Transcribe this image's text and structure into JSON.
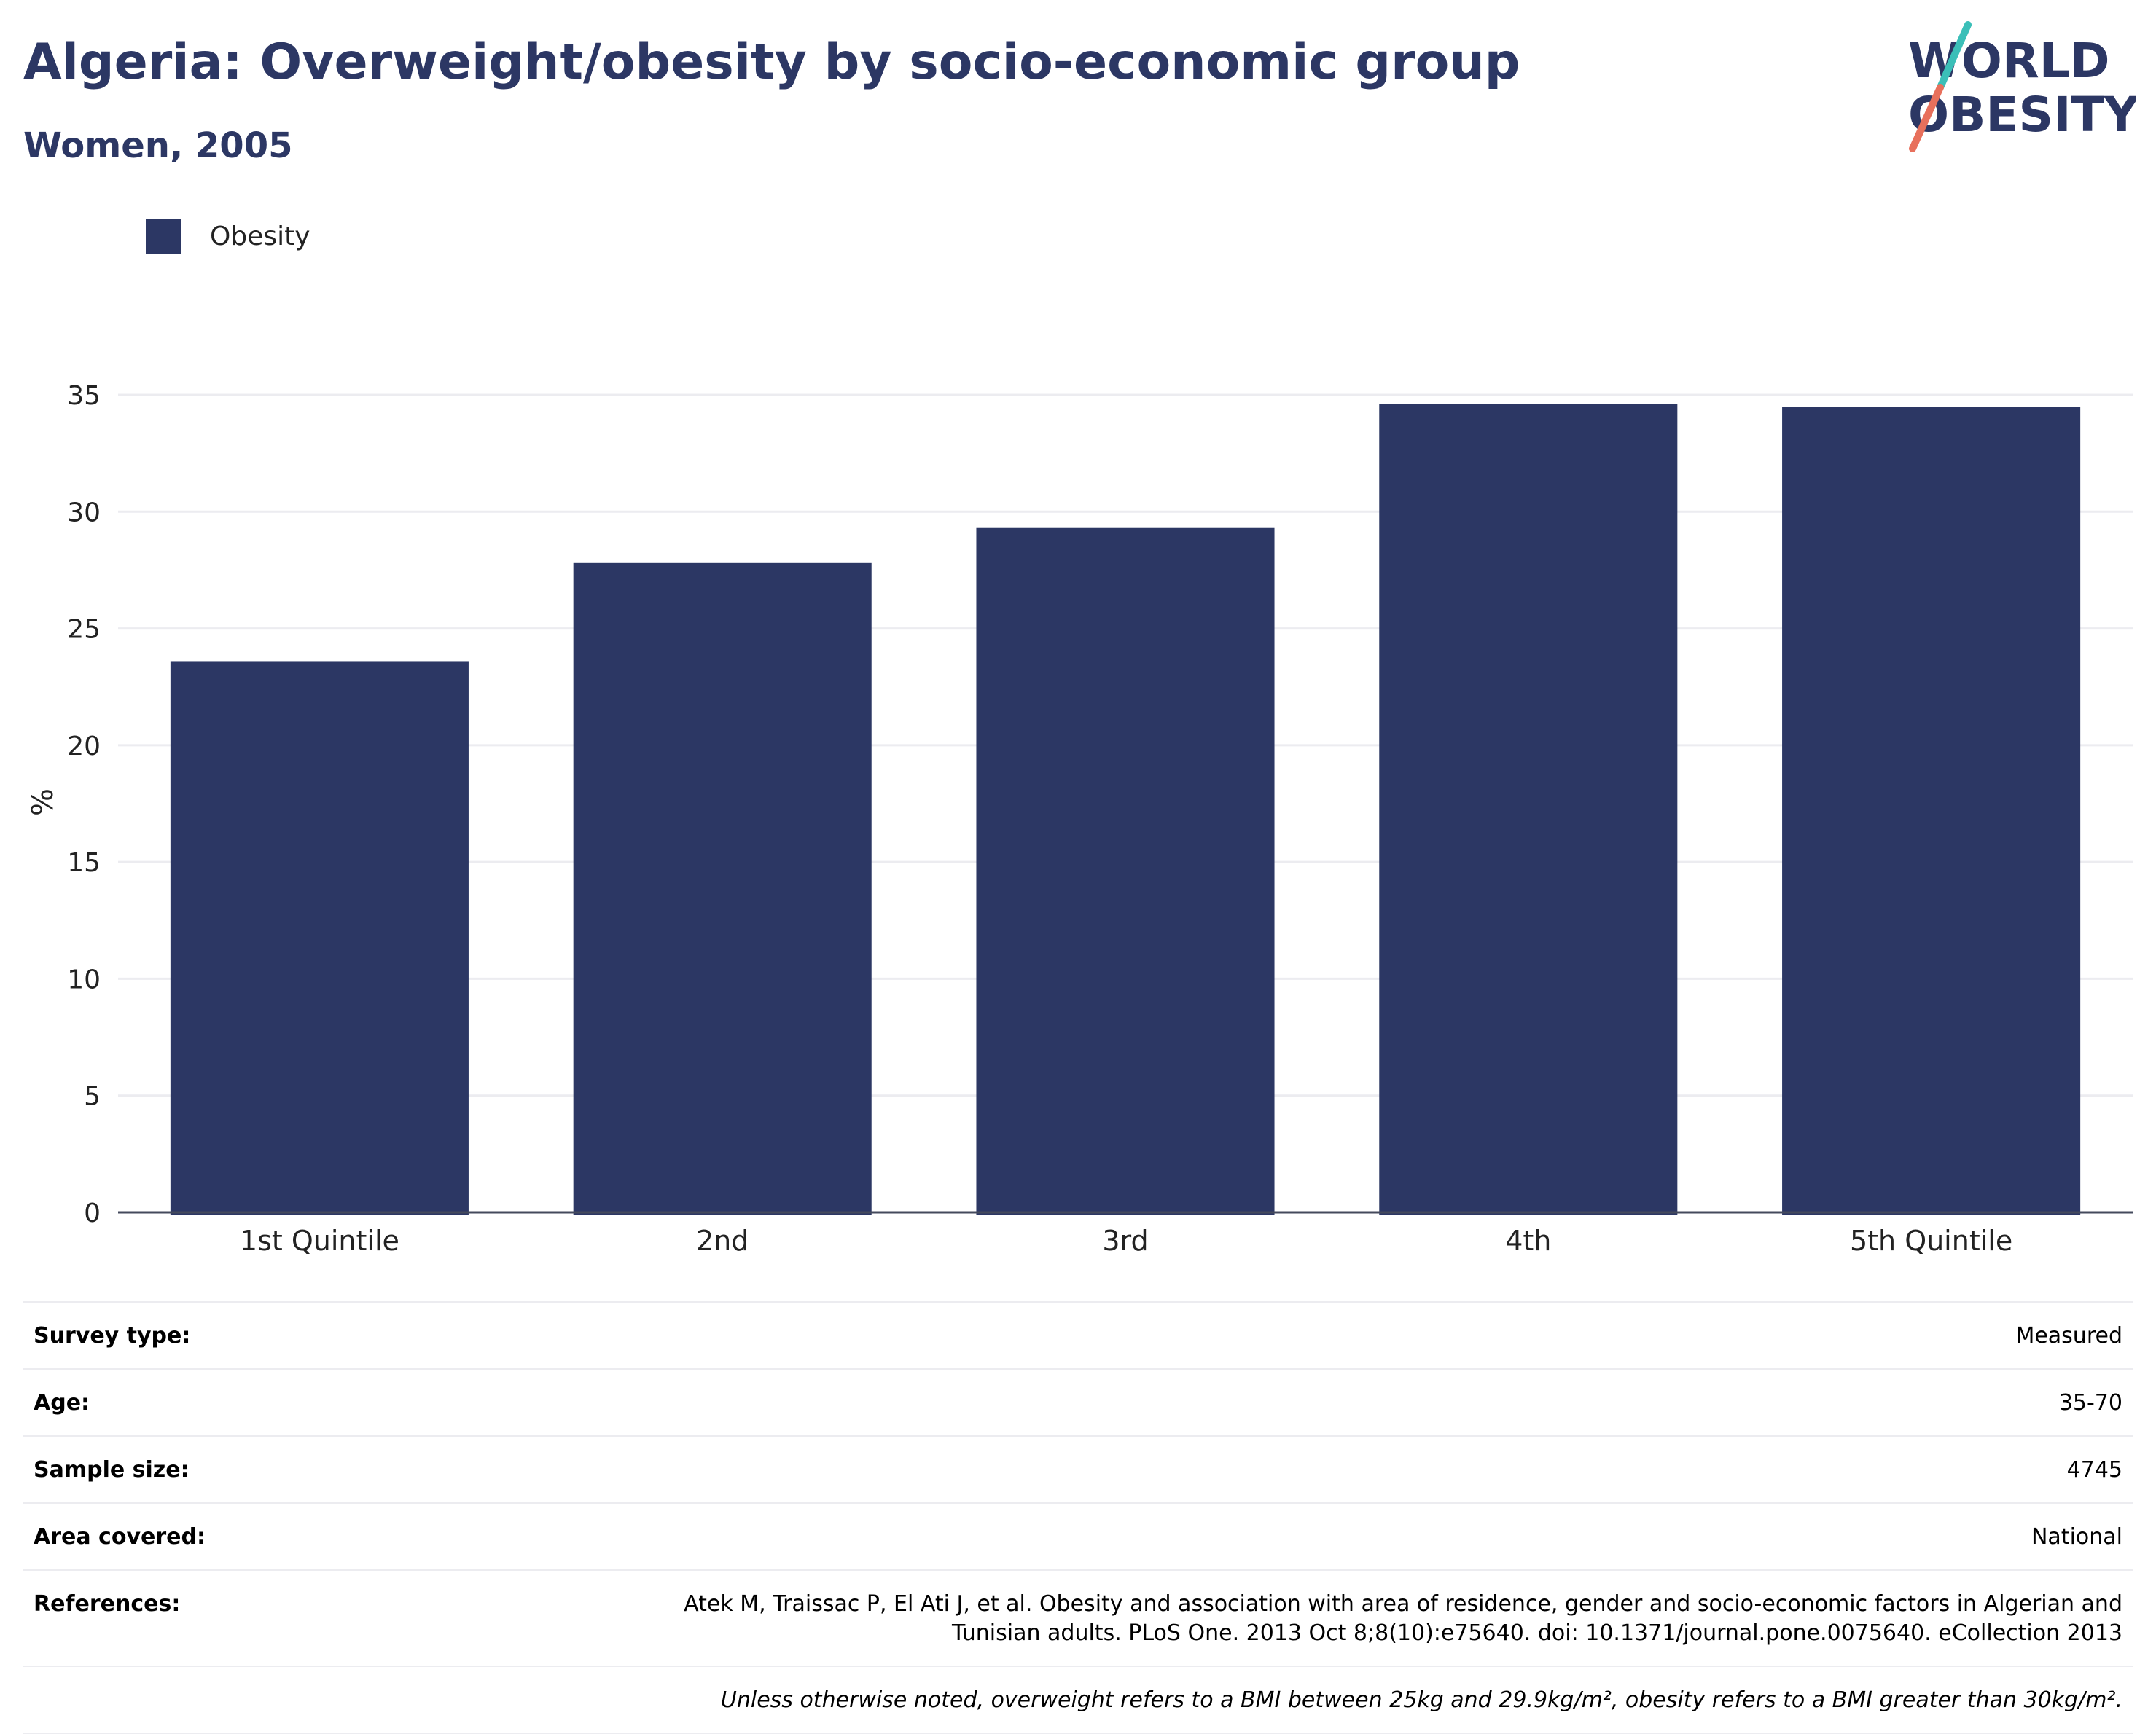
{
  "header": {
    "title": "Algeria: Overweight/obesity by socio-economic group",
    "subtitle": "Women, 2005"
  },
  "logo": {
    "line1": "WORLD",
    "line2": "OBESITY"
  },
  "colors": {
    "bar": "#2c3764",
    "title": "#2c3764",
    "logo_teal": "#3bbfb8",
    "logo_coral": "#e8705c"
  },
  "chart_data": {
    "type": "bar",
    "categories": [
      "1st Quintile",
      "2nd",
      "3rd",
      "4th",
      "5th Quintile"
    ],
    "series": [
      {
        "name": "Obesity",
        "values": [
          23.6,
          27.8,
          29.3,
          34.6,
          34.5
        ]
      }
    ],
    "ylabel": "%",
    "yticks": [
      0,
      5,
      10,
      15,
      20,
      25,
      30,
      35
    ],
    "ylim": [
      0,
      35
    ],
    "grid": true,
    "legend_position": "top-left"
  },
  "meta": [
    {
      "key": "Survey type:",
      "value": "Measured"
    },
    {
      "key": "Age:",
      "value": "35-70"
    },
    {
      "key": "Sample size:",
      "value": "4745"
    },
    {
      "key": "Area covered:",
      "value": "National"
    },
    {
      "key": "References:",
      "value": "Atek M, Traissac P, El Ati J, et al. Obesity and association with area of residence, gender and socio-economic factors in Algerian and Tunisian adults. PLoS One. 2013 Oct 8;8(10):e75640. doi: 10.1371/journal.pone.0075640. eCollection 2013"
    }
  ],
  "note": "Unless otherwise noted, overweight refers to a BMI between 25kg and 29.9kg/m², obesity refers to a BMI greater than 30kg/m²."
}
